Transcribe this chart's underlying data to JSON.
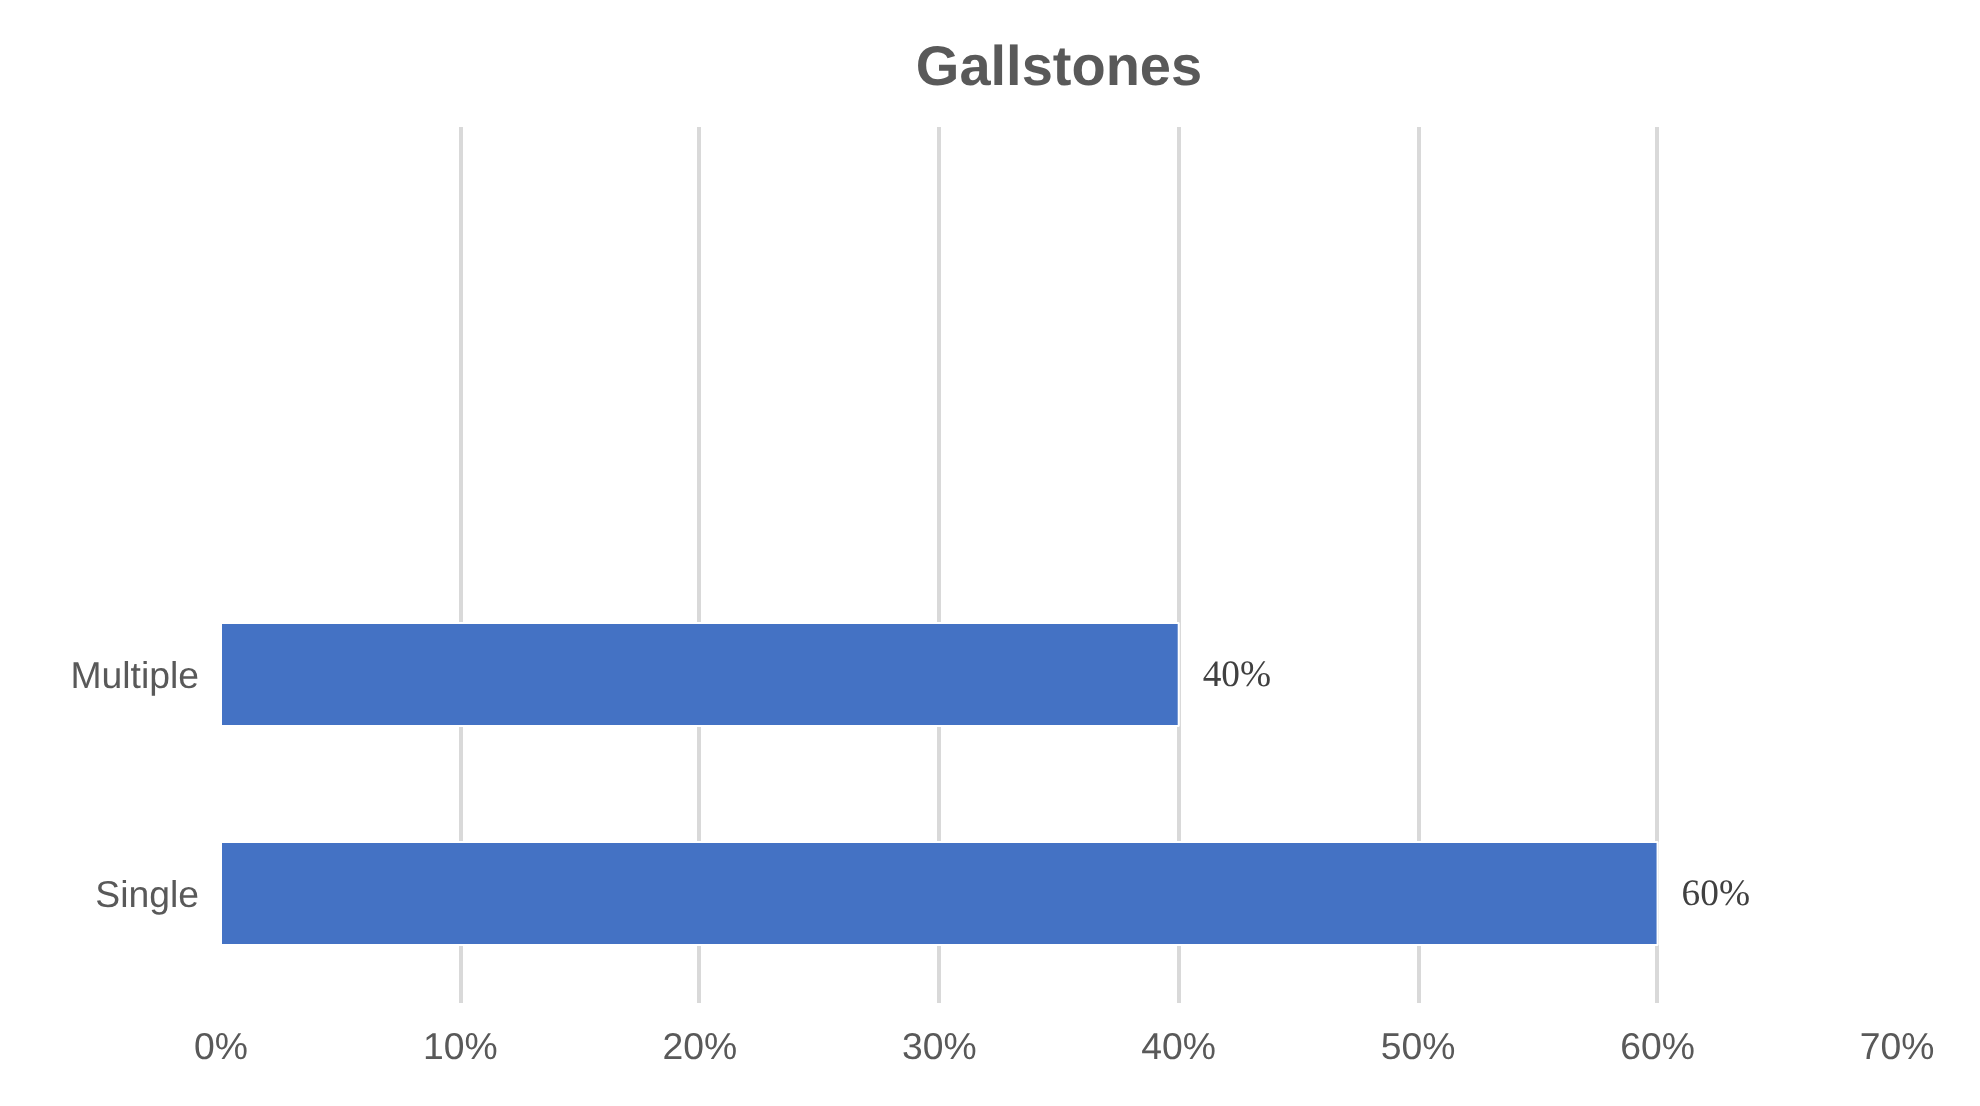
{
  "chart_data": {
    "type": "bar",
    "orientation": "horizontal",
    "title": "Gallstones",
    "categories": [
      null,
      null,
      "Multiple",
      "Single"
    ],
    "values": [
      null,
      null,
      40,
      60
    ],
    "value_labels": [
      null,
      null,
      "40%",
      "60%"
    ],
    "color": "#4472c4",
    "xlim": [
      0,
      70
    ],
    "xticks": [
      {
        "value": 0,
        "label": "0%"
      },
      {
        "value": 10,
        "label": "10%"
      },
      {
        "value": 20,
        "label": "20%"
      },
      {
        "value": 30,
        "label": "30%"
      },
      {
        "value": 40,
        "label": "40%"
      },
      {
        "value": 50,
        "label": "50%"
      },
      {
        "value": 60,
        "label": "60%"
      },
      {
        "value": 70,
        "label": "70%"
      }
    ],
    "grid": "x"
  }
}
